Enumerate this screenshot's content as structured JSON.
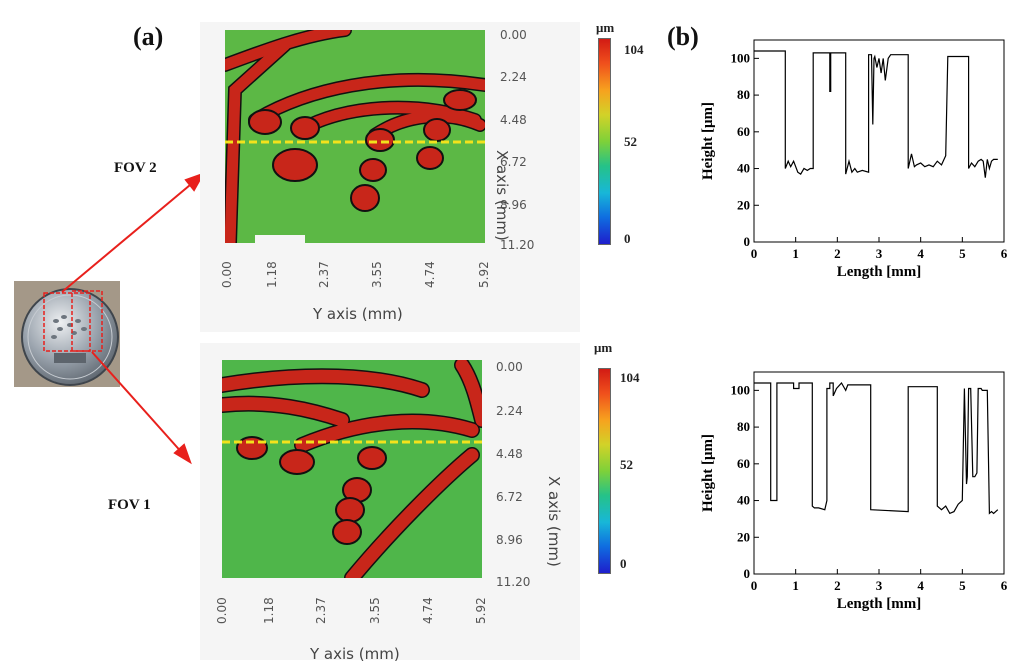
{
  "figure": {
    "panel_a_label": "(a)",
    "panel_b_label": "(b)",
    "fov2_label": "FOV 2",
    "fov1_label": "FOV 1"
  },
  "maps": {
    "x_axis_title": "X axis (mm)",
    "y_axis_title": "Y axis (mm)",
    "x_ticks": [
      "0.00",
      "2.24",
      "4.48",
      "6.72",
      "8.96",
      "11.20"
    ],
    "y_ticks": [
      "0.00",
      "1.18",
      "2.37",
      "3.55",
      "4.74",
      "5.92"
    ],
    "colorbar_unit": "μm",
    "colorbar_ticks": [
      "104",
      "52",
      "0"
    ],
    "colors": {
      "low_region": "#5cb845",
      "high_region": "#c8261a",
      "profile_line": "#f2e21c"
    }
  },
  "chart_data": [
    {
      "type": "line",
      "title": "",
      "xlabel": "Length [mm]",
      "ylabel": "Height [μm]",
      "xlim": [
        0,
        6
      ],
      "ylim": [
        0,
        110
      ],
      "xticks": [
        "0",
        "1",
        "2",
        "3",
        "4",
        "5",
        "6"
      ],
      "yticks": [
        "0",
        "20",
        "40",
        "60",
        "80",
        "100"
      ],
      "series": [
        {
          "name": "FOV 2",
          "x": [
            0,
            0.75,
            0.75,
            0.82,
            0.88,
            0.95,
            1.05,
            1.12,
            1.2,
            1.28,
            1.35,
            1.42,
            1.42,
            1.82,
            1.82,
            1.84,
            1.84,
            2.2,
            2.2,
            2.28,
            2.35,
            2.42,
            2.48,
            2.6,
            2.75,
            2.75,
            2.82,
            2.85,
            2.88,
            2.9,
            2.95,
            3.0,
            3.05,
            3.1,
            3.15,
            3.22,
            3.28,
            3.3,
            3.7,
            3.7,
            3.78,
            3.85,
            3.9,
            4.0,
            4.1,
            4.2,
            4.3,
            4.4,
            4.5,
            4.6,
            4.65,
            4.65,
            5.15,
            5.15,
            5.22,
            5.3,
            5.38,
            5.45,
            5.5,
            5.55,
            5.6,
            5.65,
            5.7,
            5.75,
            5.85
          ],
          "values": [
            104,
            104,
            40,
            44,
            41,
            44,
            38,
            37,
            40,
            39,
            40,
            40,
            103,
            103,
            82,
            82,
            103,
            103,
            37,
            44,
            38,
            40,
            38,
            39,
            38,
            102,
            102,
            64,
            100,
            101,
            95,
            100,
            92,
            100,
            88,
            100,
            102,
            102,
            102,
            40,
            48,
            41,
            42,
            43,
            41,
            42,
            41,
            44,
            42,
            47,
            101,
            101,
            101,
            40,
            43,
            41,
            44,
            45,
            44,
            35,
            45,
            40,
            44,
            45,
            45
          ]
        }
      ]
    },
    {
      "type": "line",
      "title": "",
      "xlabel": "Length [mm]",
      "ylabel": "Height [μm]",
      "xlim": [
        0,
        6
      ],
      "ylim": [
        0,
        110
      ],
      "xticks": [
        "0",
        "1",
        "2",
        "3",
        "4",
        "5",
        "6"
      ],
      "yticks": [
        "0",
        "20",
        "40",
        "60",
        "80",
        "100"
      ],
      "series": [
        {
          "name": "FOV 1",
          "x": [
            0,
            0.4,
            0.4,
            0.55,
            0.55,
            0.95,
            0.95,
            1.08,
            1.08,
            1.4,
            1.4,
            1.45,
            1.55,
            1.7,
            1.75,
            1.75,
            1.82,
            1.82,
            1.9,
            1.9,
            1.98,
            2.1,
            2.2,
            2.25,
            2.25,
            2.8,
            2.8,
            3.7,
            3.7,
            4.4,
            4.4,
            4.5,
            4.6,
            4.7,
            4.8,
            4.9,
            5.0,
            5.05,
            5.1,
            5.12,
            5.12,
            5.15,
            5.2,
            5.25,
            5.3,
            5.35,
            5.38,
            5.45,
            5.48,
            5.6,
            5.65,
            5.7,
            5.75,
            5.85
          ],
          "values": [
            104,
            104,
            40,
            40,
            104,
            104,
            101,
            101,
            104,
            104,
            37,
            36,
            36,
            35,
            40,
            101,
            101,
            104,
            104,
            97,
            101,
            104,
            100,
            103,
            103,
            103,
            35,
            34,
            102,
            102,
            37,
            35,
            37,
            33,
            34,
            38,
            40,
            101,
            49,
            53,
            53,
            101,
            101,
            53,
            53,
            55,
            101,
            101,
            100,
            100,
            33,
            34,
            33,
            35
          ]
        }
      ]
    }
  ]
}
